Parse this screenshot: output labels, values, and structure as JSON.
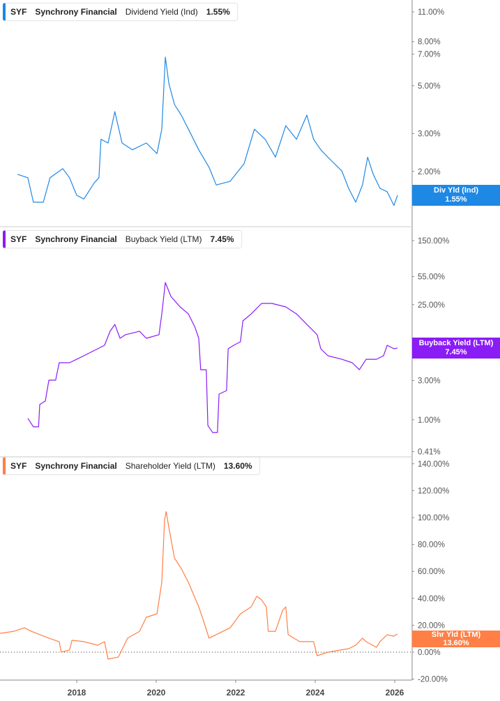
{
  "colors": {
    "dividend": "#1e88e5",
    "buyback": "#8a1cf5",
    "shareholder": "#ff7f45"
  },
  "chart_data": [
    {
      "type": "line",
      "ticker": "SYF",
      "company": "Synchrony Financial",
      "metric": "Dividend Yield (Ind)",
      "value_label": "1.55%",
      "tag_label": "Div Yld (Ind)",
      "tag_value": "1.55%",
      "yscale": "log",
      "ylim": [
        1.2,
        12
      ],
      "yticks": [
        "11.00%",
        "8.00%",
        "7.00%",
        "5.00%",
        "3.00%",
        "2.00%"
      ],
      "ytick_values": [
        11,
        8,
        7,
        5,
        3,
        2
      ],
      "points": [
        [
          2016.51,
          1.94
        ],
        [
          2016.77,
          1.87
        ],
        [
          2016.91,
          1.44
        ],
        [
          2017.16,
          1.44
        ],
        [
          2017.33,
          1.87
        ],
        [
          2017.65,
          2.06
        ],
        [
          2017.82,
          1.87
        ],
        [
          2018.0,
          1.55
        ],
        [
          2018.18,
          1.49
        ],
        [
          2018.44,
          1.77
        ],
        [
          2018.56,
          1.87
        ],
        [
          2018.61,
          2.82
        ],
        [
          2018.79,
          2.71
        ],
        [
          2018.96,
          3.79
        ],
        [
          2019.14,
          2.71
        ],
        [
          2019.4,
          2.52
        ],
        [
          2019.75,
          2.71
        ],
        [
          2020.02,
          2.42
        ],
        [
          2020.14,
          3.14
        ],
        [
          2020.23,
          6.78
        ],
        [
          2020.32,
          5.11
        ],
        [
          2020.46,
          4.09
        ],
        [
          2020.63,
          3.65
        ],
        [
          2020.81,
          3.14
        ],
        [
          2021.07,
          2.52
        ],
        [
          2021.33,
          2.09
        ],
        [
          2021.51,
          1.73
        ],
        [
          2021.86,
          1.8
        ],
        [
          2022.21,
          2.17
        ],
        [
          2022.47,
          3.14
        ],
        [
          2022.74,
          2.82
        ],
        [
          2023.0,
          2.33
        ],
        [
          2023.26,
          3.26
        ],
        [
          2023.53,
          2.82
        ],
        [
          2023.79,
          3.65
        ],
        [
          2023.96,
          2.82
        ],
        [
          2024.14,
          2.52
        ],
        [
          2024.4,
          2.25
        ],
        [
          2024.67,
          2.01
        ],
        [
          2024.84,
          1.67
        ],
        [
          2025.02,
          1.44
        ],
        [
          2025.19,
          1.73
        ],
        [
          2025.32,
          2.33
        ],
        [
          2025.46,
          1.94
        ],
        [
          2025.63,
          1.67
        ],
        [
          2025.81,
          1.61
        ],
        [
          2025.98,
          1.39
        ],
        [
          2026.07,
          1.55
        ]
      ]
    },
    {
      "type": "line",
      "ticker": "SYF",
      "company": "Synchrony Financial",
      "metric": "Buyback Yield (LTM)",
      "value_label": "7.45%",
      "tag_label": "Buyback Yield (LTM)",
      "tag_value": "7.45%",
      "yscale": "log",
      "ylim": [
        0.35,
        180
      ],
      "yticks": [
        "150.00%",
        "55.00%",
        "25.00%",
        "3.00%",
        "1.00%",
        "0.41%"
      ],
      "ytick_values": [
        150,
        55,
        25,
        3,
        1,
        0.41
      ],
      "points": [
        [
          2016.77,
          1.04
        ],
        [
          2016.91,
          0.82
        ],
        [
          2017.04,
          0.82
        ],
        [
          2017.07,
          1.53
        ],
        [
          2017.21,
          1.69
        ],
        [
          2017.3,
          3.03
        ],
        [
          2017.47,
          3.03
        ],
        [
          2017.56,
          4.93
        ],
        [
          2017.82,
          4.93
        ],
        [
          2018.0,
          5.43
        ],
        [
          2018.18,
          6.0
        ],
        [
          2018.53,
          7.28
        ],
        [
          2018.7,
          8.04
        ],
        [
          2018.84,
          11.9
        ],
        [
          2018.96,
          14.4
        ],
        [
          2019.09,
          9.77
        ],
        [
          2019.23,
          10.8
        ],
        [
          2019.58,
          11.9
        ],
        [
          2019.75,
          9.77
        ],
        [
          2020.07,
          10.8
        ],
        [
          2020.14,
          19.3
        ],
        [
          2020.23,
          46.5
        ],
        [
          2020.37,
          31.5
        ],
        [
          2020.6,
          23.5
        ],
        [
          2020.81,
          19.3
        ],
        [
          2020.98,
          13.1
        ],
        [
          2021.07,
          9.77
        ],
        [
          2021.12,
          4.05
        ],
        [
          2021.26,
          4.05
        ],
        [
          2021.3,
          0.85
        ],
        [
          2021.42,
          0.7
        ],
        [
          2021.54,
          0.7
        ],
        [
          2021.58,
          2.05
        ],
        [
          2021.77,
          2.26
        ],
        [
          2021.81,
          7.28
        ],
        [
          2021.95,
          8.04
        ],
        [
          2022.12,
          8.85
        ],
        [
          2022.18,
          15.9
        ],
        [
          2022.39,
          19.3
        ],
        [
          2022.65,
          25.9
        ],
        [
          2022.91,
          25.9
        ],
        [
          2023.26,
          23.5
        ],
        [
          2023.53,
          19.3
        ],
        [
          2023.79,
          14.4
        ],
        [
          2024.05,
          10.8
        ],
        [
          2024.14,
          7.28
        ],
        [
          2024.32,
          6.0
        ],
        [
          2024.67,
          5.43
        ],
        [
          2024.93,
          4.93
        ],
        [
          2025.11,
          4.05
        ],
        [
          2025.28,
          5.43
        ],
        [
          2025.54,
          5.43
        ],
        [
          2025.72,
          6.0
        ],
        [
          2025.81,
          8.04
        ],
        [
          2025.98,
          7.28
        ],
        [
          2026.07,
          7.45
        ]
      ]
    },
    {
      "type": "line",
      "ticker": "SYF",
      "company": "Synchrony Financial",
      "metric": "Shareholder Yield (LTM)",
      "value_label": "13.60%",
      "tag_label": "Shr Yld (LTM)",
      "tag_value": "13.60%",
      "yscale": "linear",
      "ylim": [
        -20,
        140
      ],
      "yticks": [
        "140.00%",
        "120.00%",
        "100.00%",
        "80.00%",
        "60.00%",
        "40.00%",
        "20.00%",
        "0.00%",
        "-20.00%"
      ],
      "ytick_values": [
        140,
        120,
        100,
        80,
        60,
        40,
        20,
        0,
        -20
      ],
      "zero_line": true,
      "points": [
        [
          2016.07,
          14.0
        ],
        [
          2016.42,
          15.5
        ],
        [
          2016.68,
          18.1
        ],
        [
          2016.86,
          15.5
        ],
        [
          2017.3,
          10.4
        ],
        [
          2017.56,
          7.8
        ],
        [
          2017.61,
          0
        ],
        [
          2017.82,
          1.6
        ],
        [
          2017.88,
          8.8
        ],
        [
          2018.18,
          7.8
        ],
        [
          2018.53,
          5.2
        ],
        [
          2018.7,
          7.8
        ],
        [
          2018.79,
          -5.2
        ],
        [
          2019.05,
          -3.6
        ],
        [
          2019.28,
          10.4
        ],
        [
          2019.58,
          15.5
        ],
        [
          2019.75,
          25.9
        ],
        [
          2020.02,
          28.5
        ],
        [
          2020.14,
          51.8
        ],
        [
          2020.21,
          98.4
        ],
        [
          2020.25,
          104.4
        ],
        [
          2020.33,
          90.7
        ],
        [
          2020.46,
          69.9
        ],
        [
          2020.63,
          62.2
        ],
        [
          2020.81,
          51.8
        ],
        [
          2021.07,
          33.7
        ],
        [
          2021.19,
          23.3
        ],
        [
          2021.33,
          10.4
        ],
        [
          2021.68,
          15.5
        ],
        [
          2021.86,
          18.1
        ],
        [
          2022.12,
          28.5
        ],
        [
          2022.39,
          33.7
        ],
        [
          2022.53,
          41.5
        ],
        [
          2022.65,
          38.9
        ],
        [
          2022.77,
          33.7
        ],
        [
          2022.82,
          15.5
        ],
        [
          2023.0,
          15.5
        ],
        [
          2023.18,
          31.1
        ],
        [
          2023.26,
          33.7
        ],
        [
          2023.32,
          13.0
        ],
        [
          2023.61,
          7.8
        ],
        [
          2023.96,
          7.8
        ],
        [
          2024.05,
          -2.6
        ],
        [
          2024.32,
          0
        ],
        [
          2024.84,
          2.6
        ],
        [
          2025.02,
          5.2
        ],
        [
          2025.19,
          10.4
        ],
        [
          2025.28,
          7.8
        ],
        [
          2025.54,
          3.6
        ],
        [
          2025.63,
          7.8
        ],
        [
          2025.81,
          13.0
        ],
        [
          2025.98,
          11.9
        ],
        [
          2026.07,
          13.6
        ]
      ]
    }
  ],
  "xaxis": {
    "ticks": [
      "2018",
      "2020",
      "2022",
      "2024",
      "2026"
    ],
    "tick_values": [
      2018,
      2020,
      2022,
      2024,
      2026
    ]
  }
}
